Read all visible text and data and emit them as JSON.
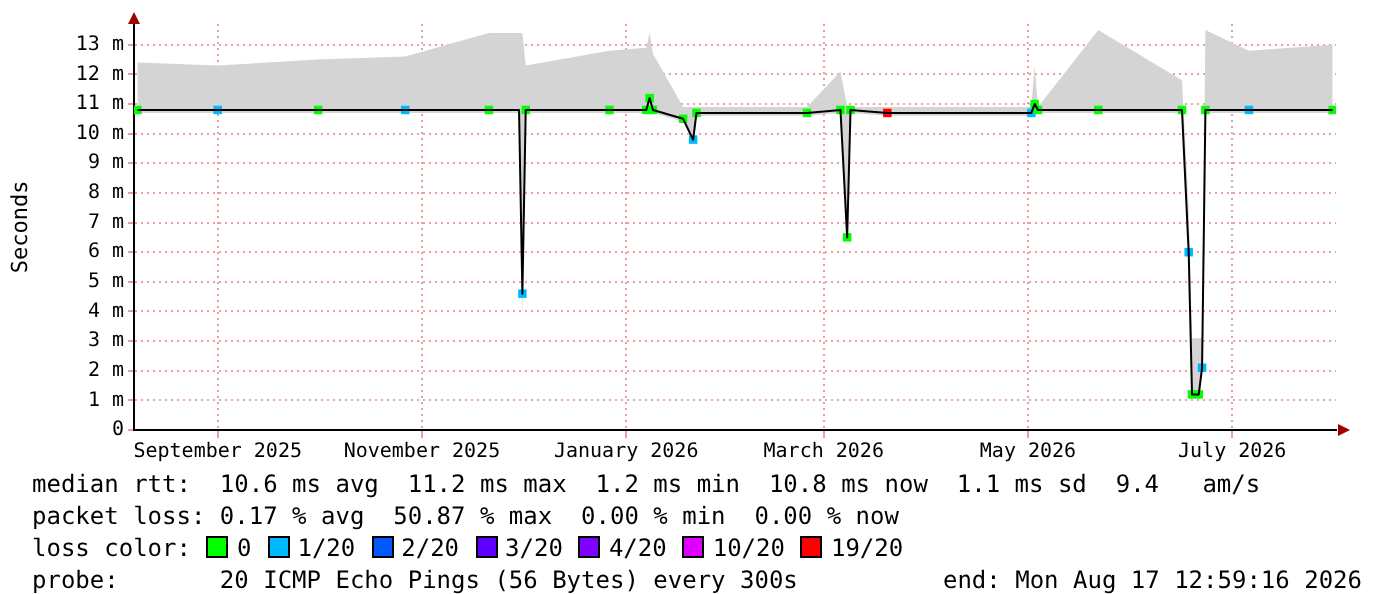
{
  "chart_data": {
    "type": "line",
    "ylabel": "Seconds",
    "x": [
      "2025-08-22",
      "2025-09-15",
      "2025-10-15",
      "2025-11-10",
      "2025-12-05",
      "2025-12-14",
      "2025-12-15",
      "2025-12-16",
      "2026-01-10",
      "2026-01-21",
      "2026-01-22",
      "2026-01-23",
      "2026-02-01",
      "2026-02-04",
      "2026-02-05",
      "2026-03-10",
      "2026-03-20",
      "2026-03-22",
      "2026-03-23",
      "2026-04-03",
      "2026-05-16",
      "2026-05-17",
      "2026-05-18",
      "2026-06-05",
      "2026-06-30",
      "2026-07-02",
      "2026-07-03",
      "2026-07-05",
      "2026-07-06",
      "2026-07-07",
      "2026-07-20",
      "2026-08-14"
    ],
    "xlim": [
      "2025-08-21",
      "2026-08-15"
    ],
    "xticks": [
      {
        "value": "2025-09-15",
        "label": "September 2025"
      },
      {
        "value": "2025-11-15",
        "label": "November 2025"
      },
      {
        "value": "2026-01-15",
        "label": "January 2026"
      },
      {
        "value": "2026-03-15",
        "label": "March 2026"
      },
      {
        "value": "2026-05-15",
        "label": "May 2026"
      },
      {
        "value": "2026-07-15",
        "label": "July 2026"
      }
    ],
    "ylim": [
      0,
      13.7
    ],
    "yticks": [
      0,
      {
        "value": 1,
        "label": "1 m"
      },
      {
        "value": 2,
        "label": "2 m"
      },
      {
        "value": 3,
        "label": "3 m"
      },
      {
        "value": 4,
        "label": "4 m"
      },
      {
        "value": 5,
        "label": "5 m"
      },
      {
        "value": 6,
        "label": "6 m"
      },
      {
        "value": 7,
        "label": "7 m"
      },
      {
        "value": 8,
        "label": "8 m"
      },
      {
        "value": 9,
        "label": "9 m"
      },
      {
        "value": 10,
        "label": "10 m"
      },
      {
        "value": 11,
        "label": "11 m"
      },
      {
        "value": 12,
        "label": "12 m"
      },
      {
        "value": 13,
        "label": "13 m"
      }
    ],
    "grid": true,
    "legend": "bottom",
    "marker": "square",
    "line_style": "solid",
    "series": [
      {
        "color": "#000000",
        "marker": "none",
        "values": [
          10.8,
          10.8,
          10.8,
          10.8,
          10.8,
          10.8,
          4.6,
          10.8,
          10.8,
          10.8,
          11.2,
          10.8,
          10.5,
          9.8,
          10.7,
          10.7,
          10.8,
          6.5,
          10.8,
          10.7,
          10.7,
          11.0,
          10.8,
          10.8,
          10.8,
          6.0,
          1.2,
          1.2,
          2.1,
          10.8,
          10.8,
          10.8
        ],
        "lower": [
          10.7,
          10.7,
          10.7,
          10.7,
          10.7,
          10.7,
          3.8,
          10.7,
          10.7,
          10.7,
          10.7,
          10.7,
          10.4,
          9.7,
          10.6,
          10.6,
          10.7,
          6.4,
          10.7,
          10.6,
          10.6,
          10.7,
          10.7,
          10.7,
          10.7,
          5.9,
          1.1,
          1.1,
          2.0,
          10.7,
          10.7,
          10.7
        ],
        "upper": [
          12.4,
          12.3,
          12.5,
          12.6,
          13.4,
          13.4,
          13.4,
          12.3,
          12.8,
          12.9,
          13.4,
          12.7,
          10.9,
          10.9,
          10.9,
          10.9,
          12.1,
          10.9,
          10.9,
          10.9,
          10.9,
          12.3,
          10.9,
          13.5,
          11.8,
          7.5,
          3.1,
          3.1,
          3.1,
          13.5,
          12.8,
          13.0
        ]
      },
      {
        "name": "0",
        "type": "scatter",
        "color": "#00ff00",
        "values": [
          10.8,
          null,
          10.8,
          null,
          10.8,
          null,
          null,
          10.8,
          10.8,
          10.8,
          11.2,
          10.8,
          10.5,
          null,
          10.7,
          10.7,
          10.8,
          6.5,
          10.8,
          null,
          null,
          11.0,
          10.8,
          10.8,
          10.8,
          null,
          1.2,
          1.2,
          null,
          10.8,
          null,
          10.8
        ]
      },
      {
        "name": "1/20",
        "type": "scatter",
        "color": "#00b8ff",
        "values": [
          null,
          10.8,
          null,
          10.8,
          null,
          null,
          4.6,
          null,
          null,
          null,
          null,
          null,
          null,
          9.8,
          null,
          null,
          null,
          null,
          null,
          null,
          10.7,
          null,
          null,
          null,
          null,
          6.0,
          null,
          null,
          2.1,
          null,
          10.8,
          null
        ]
      },
      {
        "name": "2/20",
        "type": "scatter",
        "color": "#0059ff",
        "values": [
          null,
          null,
          null,
          null,
          null,
          null,
          null,
          null,
          null,
          null,
          null,
          null,
          null,
          null,
          null,
          null,
          null,
          null,
          null,
          null,
          null,
          null,
          null,
          null,
          null,
          null,
          null,
          null,
          null,
          null,
          null,
          null
        ]
      },
      {
        "name": "3/20",
        "type": "scatter",
        "color": "#5e00ff",
        "values": [
          null,
          null,
          null,
          null,
          null,
          null,
          null,
          null,
          null,
          null,
          null,
          null,
          null,
          null,
          null,
          null,
          null,
          null,
          null,
          null,
          null,
          null,
          null,
          null,
          null,
          null,
          null,
          null,
          null,
          null,
          null,
          null
        ]
      },
      {
        "name": "4/20",
        "type": "scatter",
        "color": "#7e00ff",
        "values": [
          null,
          null,
          null,
          null,
          null,
          null,
          null,
          null,
          null,
          null,
          null,
          null,
          null,
          null,
          null,
          null,
          null,
          null,
          null,
          null,
          null,
          null,
          null,
          null,
          null,
          null,
          null,
          null,
          null,
          null,
          null,
          null
        ]
      },
      {
        "name": "10/20",
        "type": "scatter",
        "color": "#dd00ff",
        "values": [
          null,
          null,
          null,
          null,
          null,
          null,
          null,
          null,
          null,
          null,
          null,
          null,
          null,
          null,
          null,
          null,
          null,
          null,
          null,
          null,
          null,
          null,
          null,
          null,
          null,
          null,
          null,
          null,
          null,
          null,
          null,
          null
        ]
      },
      {
        "name": "19/20",
        "type": "scatter",
        "color": "#ff0000",
        "values": [
          null,
          null,
          null,
          null,
          null,
          null,
          null,
          null,
          null,
          null,
          null,
          null,
          null,
          null,
          null,
          null,
          null,
          null,
          null,
          10.7,
          null,
          null,
          null,
          null,
          null,
          null,
          null,
          null,
          null,
          null,
          null,
          null
        ]
      }
    ],
    "legend_title": "loss color:",
    "annotations": [
      "median rtt:  10.6 ms avg  11.2 ms max  1.2 ms min  10.8 ms now  1.1 ms sd  9.4   am/s",
      "packet loss: 0.17 % avg  50.87 % max  0.00 % min  0.00 % now",
      "probe:       20 ICMP Echo Pings (56 Bytes) every 300s",
      "end: Mon Aug 17 12:59:16 2026"
    ]
  }
}
